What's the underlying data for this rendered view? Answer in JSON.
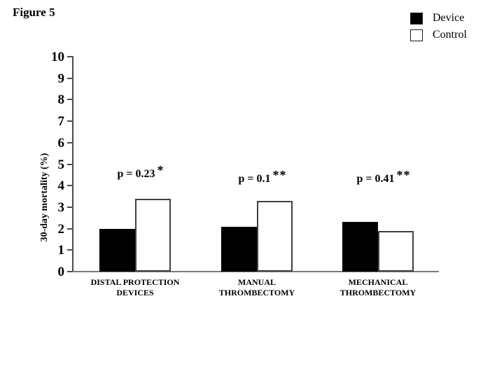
{
  "figure": {
    "title": "Figure 5"
  },
  "legend": {
    "position": "top-right",
    "items": [
      {
        "label": "Device",
        "color": "#000000",
        "style": "solid"
      },
      {
        "label": "Control",
        "color": "#ffffff",
        "style": "outlined"
      }
    ]
  },
  "chart_data": {
    "type": "bar",
    "title": "Figure 5",
    "xlabel": "",
    "ylabel": "30-day mortality (%)",
    "ylim": [
      0,
      10
    ],
    "ytick_step": 1,
    "ytick_labels": [
      "0",
      "1",
      "2",
      "3",
      "4",
      "5",
      "6",
      "7",
      "8",
      "9",
      "10"
    ],
    "grid": false,
    "legend_position": "top-right",
    "categories": [
      "DISTAL PROTECTION DEVICES",
      "MANUAL THROMBECTOMY",
      "MECHANICAL THROMBECTOMY"
    ],
    "category_lines": [
      [
        "DISTAL PROTECTION",
        "DEVICES"
      ],
      [
        "MANUAL",
        "THROMBECTOMY"
      ],
      [
        "MECHANICAL",
        "THROMBECTOMY"
      ]
    ],
    "series": [
      {
        "name": "Device",
        "color": "#000000",
        "border": "#000000",
        "values": [
          2.0,
          2.1,
          2.3
        ]
      },
      {
        "name": "Control",
        "color": "#ffffff",
        "border": "#404040",
        "values": [
          3.4,
          3.3,
          1.9
        ]
      }
    ],
    "annotations": [
      {
        "text": "p = 0.23",
        "stars": "*"
      },
      {
        "text": "p = 0.1",
        "stars": "**"
      },
      {
        "text": "p = 0.41",
        "stars": "**"
      }
    ]
  }
}
